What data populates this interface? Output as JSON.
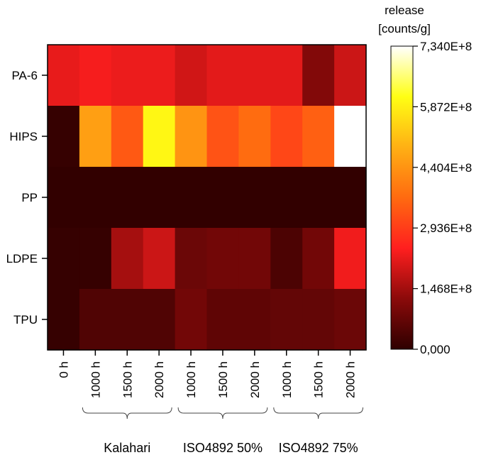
{
  "chart_data": {
    "type": "heatmap",
    "title": "",
    "rows": [
      "PA-6",
      "HIPS",
      "PP",
      "LDPE",
      "TPU"
    ],
    "columns": [
      "0 h",
      "1000 h",
      "1500 h",
      "2000 h",
      "1000 h",
      "1500 h",
      "2000 h",
      "1000 h",
      "1500 h",
      "2000 h"
    ],
    "column_groups": [
      {
        "label": "Kalahari",
        "columns": [
          1,
          2,
          3
        ]
      },
      {
        "label": "ISO4892 50%",
        "columns": [
          4,
          5,
          6
        ]
      },
      {
        "label": "ISO4892 75%",
        "columns": [
          7,
          8,
          9
        ]
      }
    ],
    "values": [
      [
        220000000.0,
        235000000.0,
        225000000.0,
        225000000.0,
        195000000.0,
        215000000.0,
        215000000.0,
        215000000.0,
        110000000.0,
        190000000.0
      ],
      [
        10000000.0,
        460000000.0,
        340000000.0,
        600000000.0,
        440000000.0,
        330000000.0,
        370000000.0,
        310000000.0,
        350000000.0,
        734000000.0
      ],
      [
        5000000.0,
        5000000.0,
        5000000.0,
        5000000.0,
        5000000.0,
        5000000.0,
        5000000.0,
        5000000.0,
        5000000.0,
        5000000.0
      ],
      [
        10000000.0,
        10000000.0,
        150000000.0,
        190000000.0,
        80000000.0,
        90000000.0,
        90000000.0,
        40000000.0,
        90000000.0,
        230000000.0
      ],
      [
        10000000.0,
        45000000.0,
        45000000.0,
        45000000.0,
        90000000.0,
        65000000.0,
        65000000.0,
        70000000.0,
        70000000.0,
        80000000.0
      ]
    ],
    "colorbar": {
      "title_lines": [
        "release",
        "[counts/g]"
      ],
      "min": 0,
      "max": 734000000.0,
      "tick_values": [
        0,
        146800000.0,
        293600000.0,
        440400000.0,
        587200000.0,
        734000000.0
      ],
      "tick_labels": [
        "0,000",
        "1,468E+8",
        "2,936E+8",
        "4,404E+8",
        "5,872E+8",
        "7,340E+8"
      ]
    },
    "colorscale": [
      "#2e0000",
      "#8b0a0a",
      "#ff1f1f",
      "#ff6a10",
      "#ffb014",
      "#ffff14",
      "#ffffff"
    ]
  }
}
